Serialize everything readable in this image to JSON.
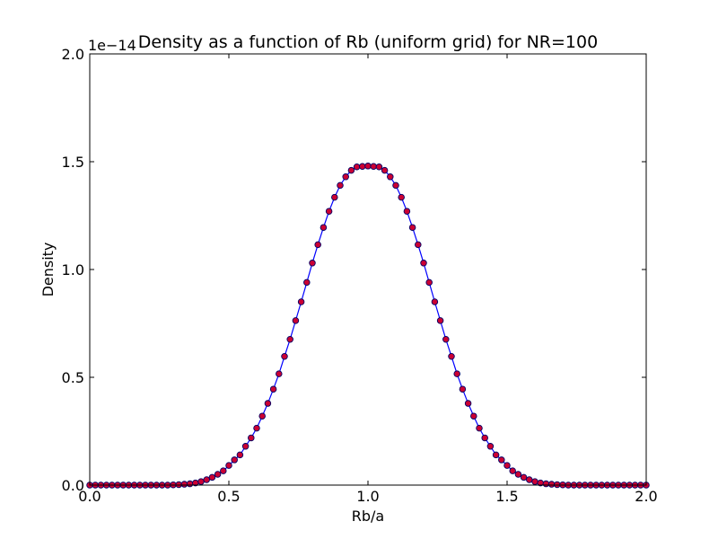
{
  "chart_data": {
    "type": "line",
    "title": "Density as a function of Rb (uniform grid) for NR=100",
    "xlabel": "Rb/a",
    "ylabel": "Density",
    "y_offset_label": "1e−14",
    "xlim": [
      0.0,
      2.0
    ],
    "ylim": [
      0.0,
      2.0
    ],
    "x_ticks": [
      "0.0",
      "0.5",
      "1.0",
      "1.5",
      "2.0"
    ],
    "y_ticks": [
      "0.0",
      "0.5",
      "1.0",
      "1.5",
      "2.0"
    ],
    "grid": false,
    "legend": "none",
    "colors": {
      "line": "#0000ff",
      "marker_fill": "#cc0033",
      "marker_edge": "#000066"
    },
    "series": [
      {
        "style": "line+markers",
        "n_points": 101,
        "x_start": 0.0,
        "x_step": 0.02,
        "y": [
          0.0,
          0.0,
          0.0,
          0.0,
          0.0,
          0.0,
          0.0,
          0.0,
          0.0,
          0.0,
          0.0,
          0.0,
          0.0,
          0.0,
          0.0,
          0.001,
          0.002,
          0.004,
          0.006,
          0.01,
          0.016,
          0.025,
          0.036,
          0.05,
          0.066,
          0.091,
          0.117,
          0.14,
          0.18,
          0.219,
          0.264,
          0.32,
          0.379,
          0.445,
          0.516,
          0.597,
          0.676,
          0.763,
          0.85,
          0.94,
          1.03,
          1.115,
          1.195,
          1.27,
          1.335,
          1.39,
          1.43,
          1.46,
          1.476,
          1.478,
          1.48,
          1.478,
          1.476,
          1.46,
          1.43,
          1.39,
          1.335,
          1.27,
          1.195,
          1.115,
          1.03,
          0.94,
          0.85,
          0.763,
          0.676,
          0.597,
          0.516,
          0.445,
          0.379,
          0.32,
          0.264,
          0.219,
          0.18,
          0.14,
          0.117,
          0.091,
          0.066,
          0.05,
          0.036,
          0.025,
          0.016,
          0.01,
          0.006,
          0.004,
          0.002,
          0.001,
          0.0,
          0.0,
          0.0,
          0.0,
          0.0,
          0.0,
          0.0,
          0.0,
          0.0,
          0.0,
          0.0,
          0.0,
          0.0,
          0.0,
          0.0
        ]
      }
    ]
  }
}
